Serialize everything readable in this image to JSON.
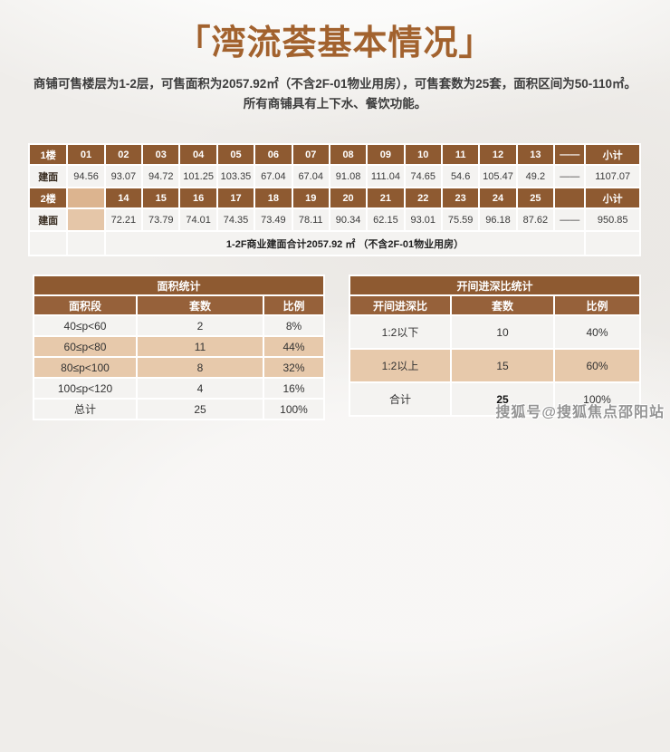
{
  "page": {
    "title": "「湾流荟基本情况」",
    "subtitle_line1": "商铺可售楼层为1-2层，可售面积为2057.92㎡（不含2F-01物业用房），可售套数为25套，面积区间为50-110㎡。",
    "subtitle_line2": "所有商铺具有上下水、餐饮功能。",
    "watermark": "搜狐号@搜狐焦点邵阳站"
  },
  "colors": {
    "title_brown": "#a2622e",
    "header_brown": "#8e5a31",
    "blank_beige_header": "#dcb48f",
    "blank_beige_data": "#e5c6a8",
    "row_beige": "#e7c9ab",
    "row_light": "#f4f3f1",
    "background": "#efedea"
  },
  "main_table": {
    "floor1": {
      "label": "1楼",
      "row_label": "建面",
      "units": [
        "01",
        "02",
        "03",
        "04",
        "05",
        "06",
        "07",
        "08",
        "09",
        "10",
        "11",
        "12",
        "13",
        "——",
        "小计"
      ],
      "areas": [
        "94.56",
        "93.07",
        "94.72",
        "101.25",
        "103.35",
        "67.04",
        "67.04",
        "91.08",
        "111.04",
        "74.65",
        "54.6",
        "105.47",
        "49.2",
        "——",
        "1107.07"
      ]
    },
    "floor2": {
      "label": "2楼",
      "row_label": "建面",
      "units": [
        "14",
        "15",
        "16",
        "17",
        "18",
        "19",
        "20",
        "21",
        "22",
        "23",
        "24",
        "25",
        "",
        "小计"
      ],
      "areas": [
        "72.21",
        "73.79",
        "74.01",
        "74.35",
        "73.49",
        "78.11",
        "90.34",
        "62.15",
        "93.01",
        "75.59",
        "96.18",
        "87.62",
        "——",
        "950.85"
      ]
    },
    "summary": "1-2F商业建面合计2057.92 ㎡ （不含2F-01物业用房）"
  },
  "area_stats": {
    "title": "面积统计",
    "headers": [
      "面积段",
      "套数",
      "比例"
    ],
    "rows": [
      [
        "40≤p<60",
        "2",
        "8%"
      ],
      [
        "60≤p<80",
        "11",
        "44%"
      ],
      [
        "80≤p<100",
        "8",
        "32%"
      ],
      [
        "100≤p<120",
        "4",
        "16%"
      ],
      [
        "总计",
        "25",
        "100%"
      ]
    ]
  },
  "ratio_stats": {
    "title": "开间进深比统计",
    "headers": [
      "开间进深比",
      "套数",
      "比例"
    ],
    "rows": [
      [
        "1:2以下",
        "10",
        "40%"
      ],
      [
        "1:2以上",
        "15",
        "60%"
      ],
      [
        "合计",
        "25",
        "100%"
      ]
    ]
  }
}
